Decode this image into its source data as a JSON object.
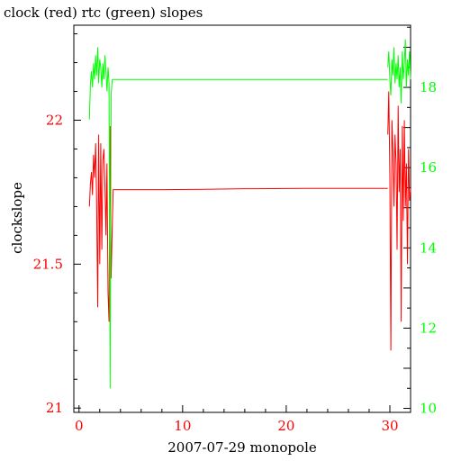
{
  "chart_data": {
    "type": "line",
    "title": "clock (red) rtc (green) slopes",
    "xlabel": "2007-07-29 monopole",
    "ylabel": "clockslope",
    "xlim": [
      -0.5,
      32.0
    ],
    "ylim_left": [
      21.0,
      22.0
    ],
    "ylim_left_axis": [
      20.985,
      22.33
    ],
    "ylim_right": [
      9.9,
      19.55
    ],
    "x_ticks": [
      0,
      10,
      20,
      30
    ],
    "y_ticks_left": [
      21,
      21.5,
      22
    ],
    "y_ticks_left_labels": [
      "21",
      "21.5",
      "22"
    ],
    "y_ticks_right": [
      10,
      12,
      14,
      16,
      18
    ],
    "y_ticks_right_labels": [
      "10",
      "12",
      "14",
      "16",
      "18"
    ],
    "grid": false,
    "colors": {
      "clock": "#ff0000",
      "rtc": "#00ff00",
      "axes": "#000000"
    },
    "series": [
      {
        "key": "clock",
        "axis": "left",
        "color": "#ff0000",
        "segments": [
          {
            "x": [
              1.0,
              1.1,
              1.2,
              1.3,
              1.4,
              1.5,
              1.6,
              1.7,
              1.8,
              1.9,
              2.0,
              2.1,
              2.2,
              2.3,
              2.4,
              2.5,
              2.6,
              2.7,
              2.8,
              2.9,
              3.0,
              3.1,
              3.2,
              3.3
            ],
            "y": [
              21.7,
              21.78,
              21.82,
              21.74,
              21.88,
              21.8,
              21.92,
              21.72,
              21.35,
              21.95,
              21.5,
              21.92,
              21.55,
              21.86,
              21.9,
              21.78,
              21.6,
              21.85,
              21.4,
              21.3,
              21.98,
              21.45,
              21.62,
              21.76
            ]
          },
          {
            "x": [
              3.3,
              8.0,
              12.0,
              16.0,
              17.0,
              22.0,
              27.0,
              29.8
            ],
            "y": [
              21.759,
              21.759,
              21.76,
              21.762,
              21.762,
              21.763,
              21.763,
              21.763
            ]
          },
          {
            "x": [
              29.8,
              29.9,
              30.0,
              30.1,
              30.2,
              30.3,
              30.4,
              30.5,
              30.6,
              30.7,
              30.8,
              30.9,
              31.0,
              31.1,
              31.2,
              31.3,
              31.4,
              31.5,
              31.6,
              31.7,
              31.8,
              31.9,
              32.0
            ],
            "y": [
              21.95,
              22.1,
              21.8,
              21.2,
              22.0,
              21.9,
              21.7,
              21.95,
              21.85,
              21.55,
              22.05,
              21.75,
              21.9,
              21.3,
              21.98,
              21.65,
              22.0,
              21.7,
              21.85,
              21.5,
              21.9,
              21.72,
              21.76
            ]
          }
        ]
      },
      {
        "key": "rtc",
        "axis": "right",
        "color": "#00ff00",
        "segments": [
          {
            "x": [
              1.0,
              1.1,
              1.2,
              1.3,
              1.4,
              1.5,
              1.6,
              1.7,
              1.8,
              1.9,
              2.0,
              2.1,
              2.2,
              2.3,
              2.4,
              2.5,
              2.6,
              2.7,
              2.8,
              2.9,
              3.0,
              3.1,
              3.2
            ],
            "y": [
              17.2,
              18.1,
              18.4,
              18.0,
              18.6,
              18.2,
              18.8,
              18.3,
              19.0,
              18.1,
              18.7,
              18.5,
              18.0,
              18.6,
              18.2,
              18.8,
              18.4,
              17.9,
              18.5,
              18.1,
              10.5,
              17.8,
              18.2
            ]
          },
          {
            "x": [
              3.2,
              8.0,
              12.0,
              16.0,
              20.0,
              25.0,
              29.8
            ],
            "y": [
              18.2,
              18.2,
              18.2,
              18.2,
              18.2,
              18.2,
              18.2
            ]
          },
          {
            "x": [
              29.8,
              29.9,
              30.0,
              30.1,
              30.2,
              30.3,
              30.4,
              30.5,
              30.6,
              30.7,
              30.8,
              30.9,
              31.0,
              31.1,
              31.2,
              31.3,
              31.4,
              31.5,
              31.6,
              31.7,
              31.8,
              31.9,
              32.0
            ],
            "y": [
              18.5,
              18.9,
              18.2,
              17.8,
              18.7,
              18.3,
              19.0,
              18.1,
              18.6,
              18.2,
              18.8,
              18.0,
              18.5,
              17.6,
              18.9,
              18.2,
              18.6,
              19.2,
              18.0,
              18.7,
              18.3,
              18.9,
              18.2
            ]
          }
        ]
      }
    ]
  }
}
